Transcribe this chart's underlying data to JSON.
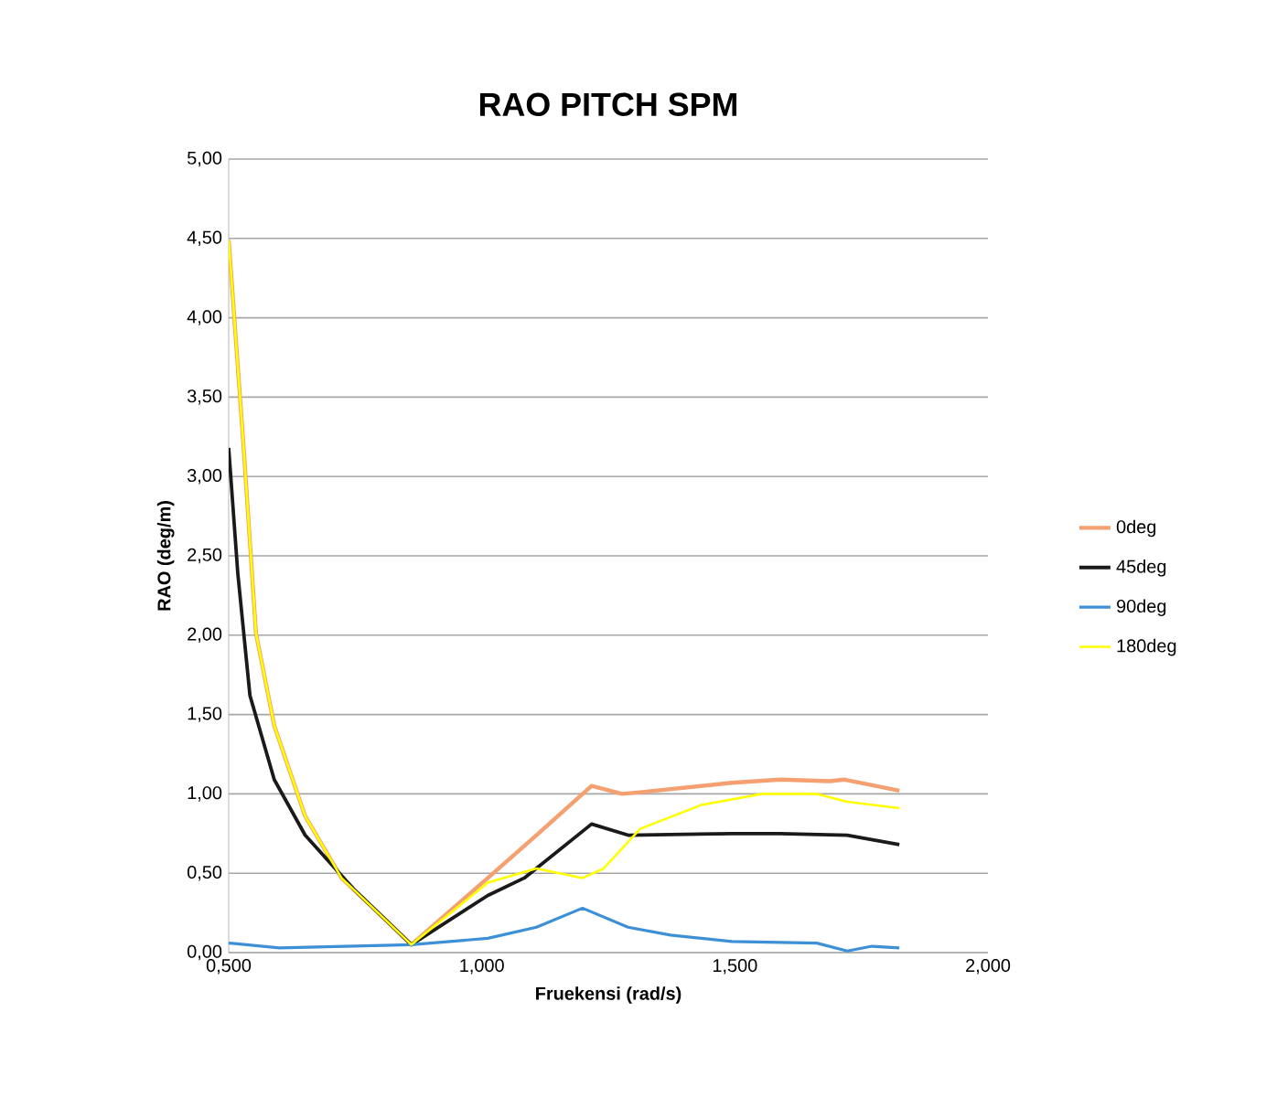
{
  "chart_data": {
    "type": "line",
    "title": "RAO PITCH SPM",
    "xlabel": "Fruekensi (rad/s)",
    "ylabel": "RAO (deg/m)",
    "xlim": [
      0.5,
      2.0
    ],
    "ylim": [
      0,
      5
    ],
    "xticks": [
      {
        "value": 0.5,
        "label": "0,500"
      },
      {
        "value": 1.0,
        "label": "1,000"
      },
      {
        "value": 1.5,
        "label": "1,500"
      },
      {
        "value": 2.0,
        "label": "2,000"
      }
    ],
    "yticks": [
      {
        "value": 0,
        "label": "0,00"
      },
      {
        "value": 0.5,
        "label": "0,50"
      },
      {
        "value": 1.0,
        "label": "1,00"
      },
      {
        "value": 1.5,
        "label": "1,50"
      },
      {
        "value": 2.0,
        "label": "2,00"
      },
      {
        "value": 2.5,
        "label": "2,50"
      },
      {
        "value": 3.0,
        "label": "3,00"
      },
      {
        "value": 3.5,
        "label": "3,50"
      },
      {
        "value": 4.0,
        "label": "4,00"
      },
      {
        "value": 4.5,
        "label": "4,50"
      },
      {
        "value": 5.0,
        "label": "5,00"
      }
    ],
    "grid": "y",
    "legend": "right",
    "marker": "none",
    "series": [
      {
        "name": "0deg",
        "color": "#f4a070",
        "x": [
          0.5,
          0.53,
          0.554,
          0.59,
          0.651,
          0.723,
          0.861,
          1.012,
          1.108,
          1.217,
          1.277,
          1.313,
          1.494,
          1.59,
          1.687,
          1.717,
          1.825
        ],
        "values": [
          4.49,
          3.16,
          2.01,
          1.43,
          0.86,
          0.47,
          0.05,
          0.47,
          0.74,
          1.05,
          1.0,
          1.01,
          1.07,
          1.09,
          1.08,
          1.09,
          1.02
        ]
      },
      {
        "name": "45deg",
        "color": "#1a1a1a",
        "x": [
          0.5,
          0.518,
          0.542,
          0.59,
          0.651,
          0.747,
          0.861,
          1.012,
          1.084,
          1.217,
          1.289,
          1.494,
          1.59,
          1.722,
          1.825
        ],
        "values": [
          3.18,
          2.39,
          1.62,
          1.09,
          0.74,
          0.4,
          0.05,
          0.36,
          0.47,
          0.81,
          0.74,
          0.75,
          0.75,
          0.74,
          0.68
        ]
      },
      {
        "name": "90deg",
        "color": "#3d8fd6",
        "x": [
          0.5,
          0.6,
          0.861,
          1.012,
          1.108,
          1.199,
          1.289,
          1.373,
          1.494,
          1.662,
          1.722,
          1.771,
          1.825
        ],
        "values": [
          0.06,
          0.03,
          0.05,
          0.09,
          0.16,
          0.28,
          0.16,
          0.11,
          0.07,
          0.06,
          0.01,
          0.04,
          0.03
        ]
      },
      {
        "name": "180deg",
        "color": "#ffff00",
        "x": [
          0.5,
          0.53,
          0.554,
          0.59,
          0.651,
          0.723,
          0.861,
          1.012,
          1.108,
          1.199,
          1.241,
          1.313,
          1.434,
          1.554,
          1.662,
          1.722,
          1.825
        ],
        "values": [
          4.49,
          3.16,
          2.01,
          1.43,
          0.86,
          0.47,
          0.05,
          0.44,
          0.53,
          0.47,
          0.53,
          0.78,
          0.93,
          1.0,
          1.0,
          0.95,
          0.91
        ]
      }
    ]
  }
}
